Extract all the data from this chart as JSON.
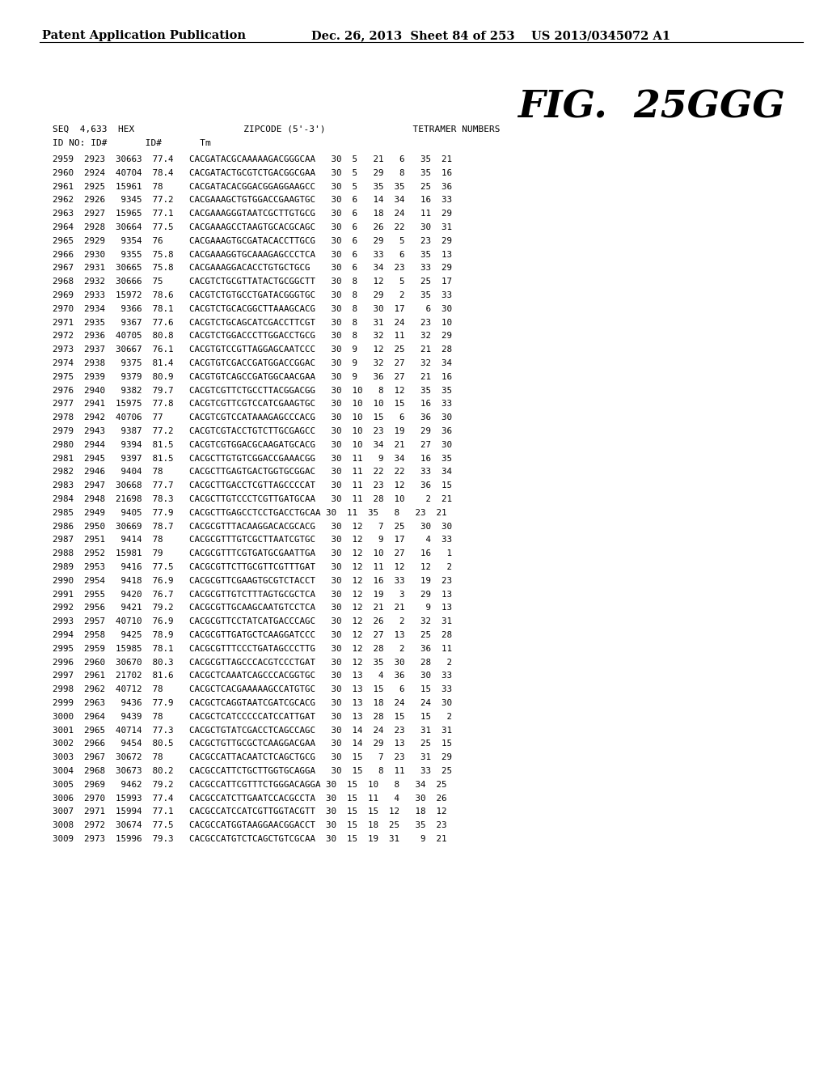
{
  "header_left": "Patent Application Publication",
  "header_right": "Dec. 26, 2013  Sheet 84 of 253    US 2013/0345072 A1",
  "fig_title": "FIG.  25GGG",
  "col_header1": "SEQ  4,633  HEX                    ZIPCODE (5'-3')                TETRAMER NUMBERS",
  "col_header2": "ID NO: ID#       ID#       Tm",
  "rows": [
    "2959  2923  30663  77.4   CACGATACGCAAAAAGACGGGCAA   30  5   21   6   35  21",
    "2960  2924  40704  78.4   CACGATACTGCGTCTGACGGCGAA   30  5   29   8   35  16",
    "2961  2925  15961  78     CACGATACACGGACGGAGGAAGCC   30  5   35  35   25  36",
    "2962  2926   9345  77.2   CACGAAAGCTGTGGACCGAAGTGC   30  6   14  34   16  33",
    "2963  2927  15965  77.1   CACGAAAGGGTAATCGCTTGTGCG   30  6   18  24   11  29",
    "2964  2928  30664  77.5   CACGAAAGCCTAAGTGCACGCAGC   30  6   26  22   30  31",
    "2965  2929   9354  76     CACGAAAGTGCGATACACCTTGCG   30  6   29   5   23  29",
    "2966  2930   9355  75.8   CACGAAAGGTGCAAAGAGCCCTCA   30  6   33   6   35  13",
    "2967  2931  30665  75.8   CACGAAAGGACACCTGTGCTGCG    30  6   34  23   33  29",
    "2968  2932  30666  75     CACGTCTGCGTTATACTGCGGCTT   30  8   12   5   25  17",
    "2969  2933  15972  78.6   CACGTCTGTGCCTGATACGGGTGC   30  8   29   2   35  33",
    "2970  2934   9366  78.1   CACGTCTGCACGGCTTAAAGCACG   30  8   30  17    6  30",
    "2971  2935   9367  77.6   CACGTCTGCAGCATCGACCTTCGT   30  8   31  24   23  10",
    "2972  2936  40705  80.8   CACGTCTGGACCCTTGGACCTGCG   30  8   32  11   32  29",
    "2973  2937  30667  76.1   CACGTGTCCGTTAGGAGCAATCCC   30  9   12  25   21  28",
    "2974  2938   9375  81.4   CACGTGTCGACCGATGGACCGGAC   30  9   32  27   32  34",
    "2975  2939   9379  80.9   CACGTGTCAGCCGATGGCAACGAA   30  9   36  27   21  16",
    "2976  2940   9382  79.7   CACGTCGTTCTGCCTTACGGACGG   30  10   8  12   35  35",
    "2977  2941  15975  77.8   CACGTCGTTCGTCCATCGAAGTGC   30  10  10  15   16  33",
    "2978  2942  40706  77     CACGTCGTCCATAAAGAGCCCACG   30  10  15   6   36  30",
    "2979  2943   9387  77.2   CACGTCGTACCTGTCTTGCGAGCC   30  10  23  19   29  36",
    "2980  2944   9394  81.5   CACGTCGTGGACGCAAGATGCACG   30  10  34  21   27  30",
    "2981  2945   9397  81.5   CACGCTTGTGTCGGACCGAAACGG   30  11   9  34   16  35",
    "2982  2946   9404  78     CACGCTTGAGTGACTGGTGCGGAC   30  11  22  22   33  34",
    "2983  2947  30668  77.7   CACGCTTGACCTCGTTAGCCCCAT   30  11  23  12   36  15",
    "2984  2948  21698  78.3   CACGCTTGTCCCTCGTTGATGCAA   30  11  28  10    2  21",
    "2985  2949   9405  77.9   CACGCTTGAGCCTCCTGACCTGCAA 30  11  35   8   23  21",
    "2986  2950  30669  78.7   CACGCGTTTACAAGGACACGCACG   30  12   7  25   30  30",
    "2987  2951   9414  78     CACGCGTTTGTCGCTTAATCGTGC   30  12   9  17    4  33",
    "2988  2952  15981  79     CACGCGTTTCGTGATGCGAATTGA   30  12  10  27   16   1",
    "2989  2953   9416  77.5   CACGCGTTCTTGCGTTCGTTTGAT   30  12  11  12   12   2",
    "2990  2954   9418  76.9   CACGCGTTCGAAGTGCGTCTACCT   30  12  16  33   19  23",
    "2991  2955   9420  76.7   CACGCGTTGTCTTTАGTGCGCTCA   30  12  19   3   29  13",
    "2992  2956   9421  79.2   CACGCGTTGCAAGCAATGTCCTCA   30  12  21  21    9  13",
    "2993  2957  40710  76.9   CACGCGTTCCTATCATGACCCAGC   30  12  26   2   32  31",
    "2994  2958   9425  78.9   CACGCGTTGATGCTCAAGGATCCC   30  12  27  13   25  28",
    "2995  2959  15985  78.1   CACGCGTTTCCCTGATAGCCCTTG   30  12  28   2   36  11",
    "2996  2960  30670  80.3   CACGCGTTAGCCCACGTCCCTGAT   30  12  35  30   28   2",
    "2997  2961  21702  81.6   CACGCTCAAATCAGCCCACGGTGC   30  13   4  36   30  33",
    "2998  2962  40712  78     CACGCTCACGAAAAAGCCATGTGC   30  13  15   6   15  33",
    "2999  2963   9436  77.9   CACGCTCAGGTAATCGATCGCACG   30  13  18  24   24  30",
    "3000  2964   9439  78     CACGCTCATCCCCCATCCATTGAT   30  13  28  15   15   2",
    "3001  2965  40714  77.3   CACGCTGTATCGACCTCAGCCAGC   30  14  24  23   31  31",
    "3002  2966   9454  80.5   CACGCTGTTGCGCTCAAGGACGAA   30  14  29  13   25  15",
    "3003  2967  30672  78     CACGCCATTACAATCTCAGCTGCG   30  15   7  23   31  29",
    "3004  2968  30673  80.2   CACGCCATTCTGCTTGGTGCAGGA   30  15   8  11   33  25",
    "3005  2969   9462  79.2   CACGCCATTCGTTTCTGGGACAGGA 30  15  10   8   34  25",
    "3006  2970  15993  77.4   CACGCCATCTTGAATCCACGCCTA  30  15  11   4   30  26",
    "3007  2971  15994  77.1   CACGCCATCCATCGTTGGTACGTT  30  15  15  12   18  12",
    "3008  2972  30674  77.5   CACGCCATGGTAAGGAACGGACCT  30  15  18  25   35  23",
    "3009  2973  15996  79.3   CACGCCATGTCTCAGCTGTCGCAA  30  15  19  31    9  21"
  ]
}
